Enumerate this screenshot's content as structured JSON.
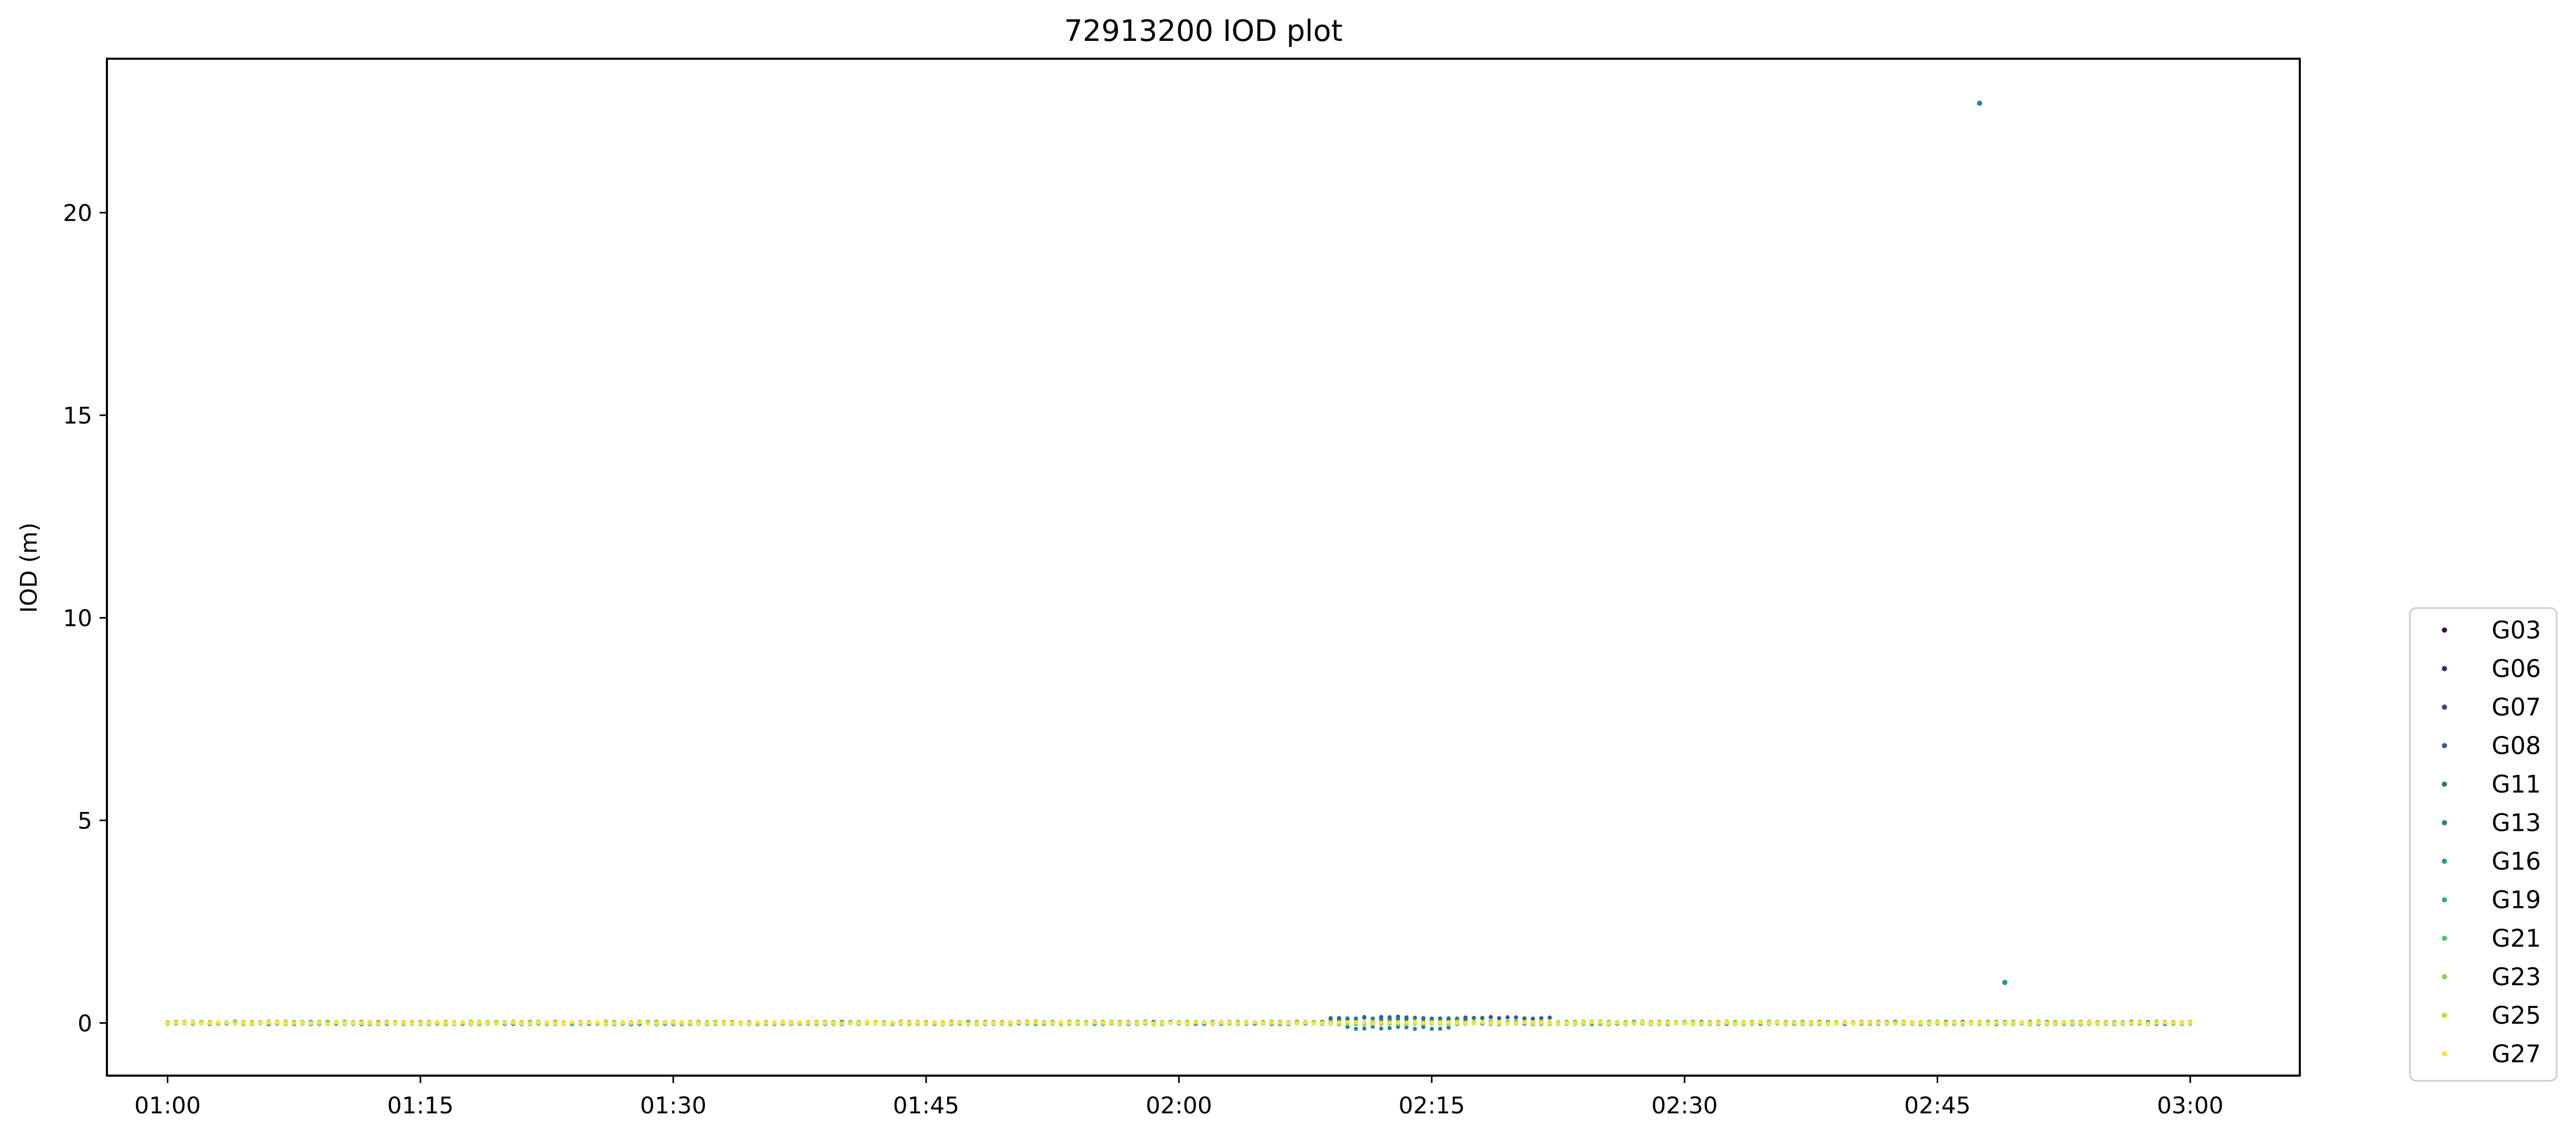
{
  "chart_data": {
    "type": "scatter",
    "title": "72913200 IOD plot",
    "xlabel": "",
    "ylabel": "IOD (m)",
    "x_start_time": "01:00",
    "x_end_time": "03:00",
    "xlim_minutes": [
      -3.6,
      126.5
    ],
    "ylim": [
      -1.3,
      23.8
    ],
    "x_tick_minutes": [
      0,
      15,
      30,
      45,
      60,
      75,
      90,
      105,
      120
    ],
    "x_tick_labels": [
      "01:00",
      "01:15",
      "01:30",
      "01:45",
      "02:00",
      "02:15",
      "02:30",
      "02:45",
      "03:00"
    ],
    "y_ticks": [
      0,
      5,
      10,
      15,
      20
    ],
    "y_tick_labels": [
      "0",
      "5",
      "10",
      "15",
      "20"
    ],
    "grid": false,
    "legend_position": "lower-right-outside",
    "sample_interval_seconds": 30,
    "series": [
      {
        "name": "G03",
        "color": "#440154",
        "start_minute": 0,
        "end_minute": 120,
        "noise": 0.02
      },
      {
        "name": "G06",
        "color": "#482173",
        "start_minute": 0,
        "end_minute": 120,
        "noise": 0.02
      },
      {
        "name": "G07",
        "color": "#433e85",
        "start_minute": 0,
        "end_minute": 120,
        "noise": 0.02
      },
      {
        "name": "G08",
        "color": "#38598c",
        "start_minute": 0,
        "end_minute": 120,
        "noise": 0.03,
        "bumps": [
          {
            "from": 69,
            "to": 82,
            "value": 0.13
          }
        ]
      },
      {
        "name": "G11",
        "color": "#2d708e",
        "start_minute": 0,
        "end_minute": 120,
        "noise": 0.03,
        "bumps": [
          {
            "from": 69,
            "to": 78,
            "value": 0.1
          }
        ]
      },
      {
        "name": "G13",
        "color": "#25858e",
        "start_minute": 0,
        "end_minute": 120,
        "noise": 0.03,
        "bumps": [
          {
            "from": 70,
            "to": 76,
            "value": -0.12
          }
        ],
        "spikes": [
          {
            "x": 107.5,
            "y": 22.7
          }
        ]
      },
      {
        "name": "G16",
        "color": "#1e9b8a",
        "start_minute": 0,
        "end_minute": 120,
        "noise": 0.03,
        "spikes": [
          {
            "x": 109,
            "y": 1.0
          }
        ]
      },
      {
        "name": "G19",
        "color": "#2ab07f",
        "start_minute": 0,
        "end_minute": 120,
        "noise": 0.03
      },
      {
        "name": "G21",
        "color": "#52c569",
        "start_minute": 0,
        "end_minute": 120,
        "noise": 0.03
      },
      {
        "name": "G23",
        "color": "#86d549",
        "start_minute": 0,
        "end_minute": 120,
        "noise": 0.04
      },
      {
        "name": "G25",
        "color": "#c2df23",
        "start_minute": 0,
        "end_minute": 120,
        "noise": 0.02
      },
      {
        "name": "G27",
        "color": "#fde725",
        "start_minute": 0,
        "end_minute": 120,
        "noise": 0.02
      }
    ]
  }
}
